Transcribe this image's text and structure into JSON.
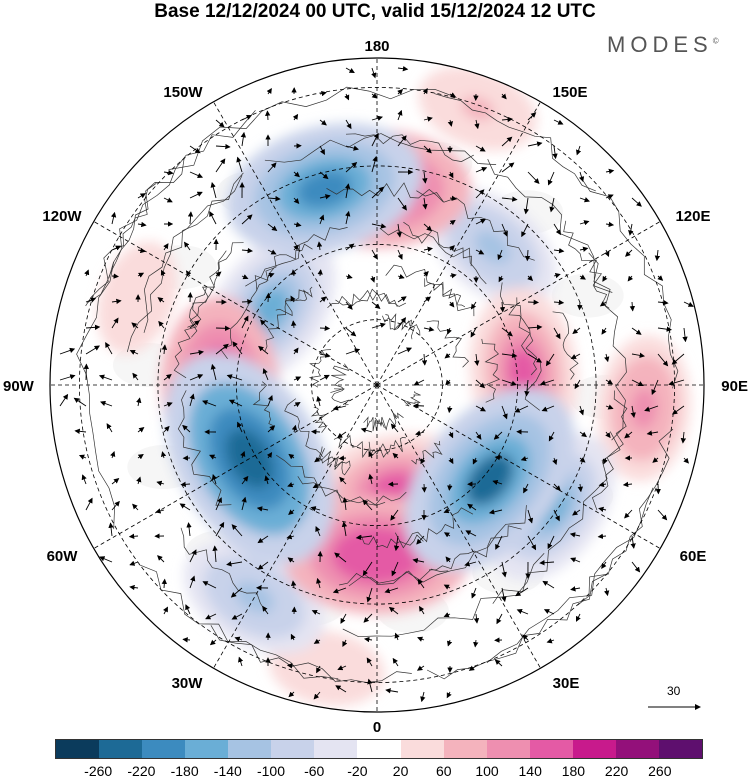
{
  "title": "Base 12/12/2024 00 UTC, valid 15/12/2024 12 UTC",
  "brand": "MODES",
  "brand_mark": "©",
  "lon_labels": {
    "top": "180",
    "bottom": "0",
    "left": "90W",
    "right": "90E",
    "top_left": "150W",
    "top_right": "150E",
    "upper_left": "120W",
    "upper_right": "120E",
    "lower_left": "60W",
    "lower_right": "60E",
    "bottom_left": "30W",
    "bottom_right": "30E"
  },
  "vector_scale_label": "30",
  "colorbar": {
    "colors": [
      "#0b3b5c",
      "#1d6a96",
      "#3c8bbf",
      "#6aaed6",
      "#a6c3e3",
      "#c8d2ea",
      "#e4e4f2",
      "#ffffff",
      "#fadcdc",
      "#f4b3bd",
      "#ee8fb0",
      "#e45aa5",
      "#c81a8c",
      "#93107a",
      "#5e0f6e"
    ],
    "ticks": [
      "-260",
      "-220",
      "-180",
      "-140",
      "-100",
      "-60",
      "-20",
      "20",
      "60",
      "100",
      "140",
      "180",
      "220",
      "260"
    ]
  },
  "anomaly_blobs": [
    {
      "lon": -165,
      "r": 0.62,
      "value": -200
    },
    {
      "lon": 180,
      "r": 0.6,
      "value": 180
    },
    {
      "lon": -125,
      "r": 0.4,
      "value": -150
    },
    {
      "lon": 140,
      "r": 0.55,
      "value": -110
    },
    {
      "lon": 95,
      "r": 0.45,
      "value": 150
    },
    {
      "lon": 85,
      "r": 0.82,
      "value": 110
    },
    {
      "lon": 50,
      "r": 0.45,
      "value": -220
    },
    {
      "lon": 55,
      "r": 0.65,
      "value": -140
    },
    {
      "lon": 10,
      "r": 0.32,
      "value": 150
    },
    {
      "lon": 0,
      "r": 0.52,
      "value": 180
    },
    {
      "lon": 20,
      "r": 0.45,
      "value": -90
    },
    {
      "lon": -60,
      "r": 0.45,
      "value": -250
    },
    {
      "lon": -88,
      "r": 0.48,
      "value": 180
    },
    {
      "lon": -110,
      "r": 0.78,
      "value": 60
    },
    {
      "lon": -30,
      "r": 0.75,
      "value": -120
    },
    {
      "lon": -10,
      "r": 0.88,
      "value": 60
    },
    {
      "lon": 160,
      "r": 0.9,
      "value": 70
    }
  ]
}
